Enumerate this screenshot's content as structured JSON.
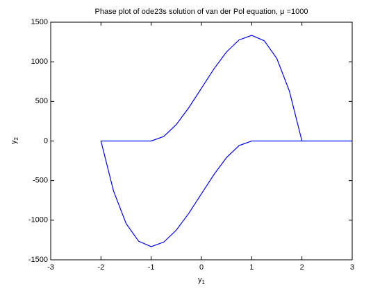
{
  "chart_data": {
    "type": "line",
    "title": "Phase plot of ode23s solution of van der Pol equation, μ =1000",
    "xlabel": {
      "text": "y",
      "subscript": "1"
    },
    "ylabel": {
      "text": "y",
      "subscript": "2"
    },
    "series": [
      {
        "color": "#0000ff",
        "x": [
          3,
          2,
          1.75,
          1.5,
          1.25,
          1,
          0.75,
          0.5,
          0.25,
          0,
          -0.25,
          -0.5,
          -0.75,
          -1,
          -2,
          -1.75,
          -1.5,
          -1.25,
          -1,
          -0.75,
          -0.5,
          -0.25,
          0,
          0.25,
          0.5,
          0.75,
          1,
          2
        ],
        "values": [
          0,
          0,
          630.2,
          1041.7,
          1265.6,
          1333.3,
          1276.0,
          1125,
          911.5,
          666.7,
          421.9,
          208.3,
          57.3,
          0,
          0,
          -630.2,
          -1041.7,
          -1265.6,
          -1333.3,
          -1276.0,
          -1125,
          -911.5,
          -666.7,
          -421.9,
          -208.3,
          -57.3,
          0,
          0
        ]
      }
    ],
    "xlim": [
      -3,
      3
    ],
    "xticks": [
      -3,
      -2,
      -1,
      0,
      1,
      2,
      3
    ],
    "ylim": [
      -1500,
      1500
    ],
    "yticks": [
      -1500,
      -1000,
      -500,
      0,
      500,
      1000,
      1500
    ],
    "grid": false
  }
}
